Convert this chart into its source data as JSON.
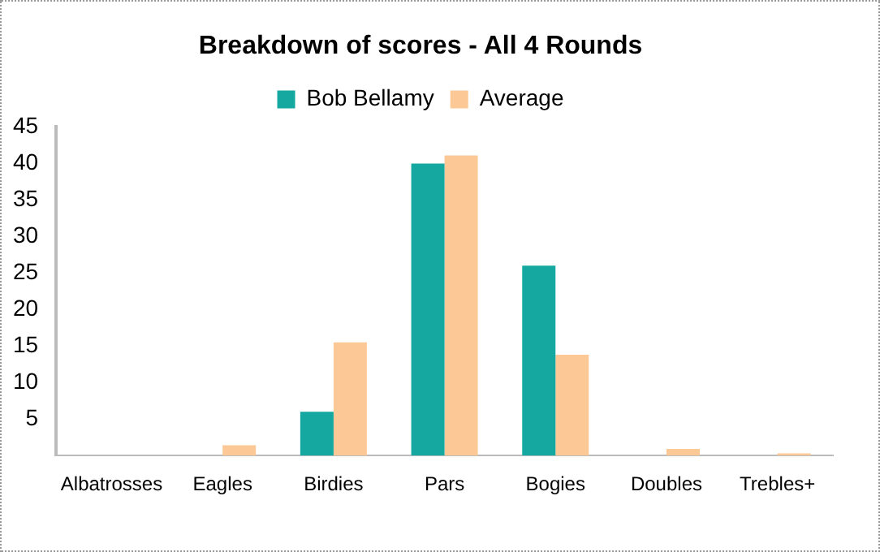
{
  "chart_data": {
    "type": "bar",
    "title": "Breakdown of scores - All 4 Rounds",
    "categories": [
      "Albatrosses",
      "Eagles",
      "Birdies",
      "Pars",
      "Bogies",
      "Doubles",
      "Trebles+"
    ],
    "series": [
      {
        "name": "Bob Bellamy",
        "color": "#14a8a0",
        "values": [
          0,
          0,
          6,
          40,
          26,
          0,
          0
        ]
      },
      {
        "name": "Average",
        "color": "#fcc896",
        "values": [
          0,
          1.4,
          15.5,
          41.1,
          13.8,
          0.9,
          0.3
        ]
      }
    ],
    "ylim": [
      0,
      45
    ],
    "yticks": [
      5,
      10,
      15,
      20,
      25,
      30,
      35,
      40,
      45
    ],
    "grid": false,
    "legend": "top"
  }
}
